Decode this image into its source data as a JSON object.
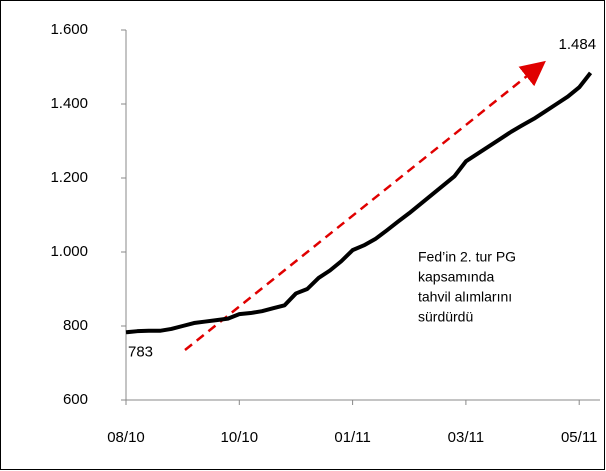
{
  "chart_data": {
    "type": "line",
    "categories": [
      "08/10",
      null,
      null,
      null,
      null,
      null,
      null,
      null,
      null,
      null,
      "10/10",
      null,
      null,
      null,
      null,
      null,
      null,
      null,
      null,
      null,
      "01/11",
      null,
      null,
      null,
      null,
      null,
      null,
      null,
      null,
      null,
      "03/11",
      null,
      null,
      null,
      null,
      null,
      null,
      null,
      null,
      null,
      "05/11",
      null
    ],
    "series": [
      {
        "name": null,
        "color": "#000000",
        "values": [
          783,
          786,
          787,
          787,
          792,
          800,
          808,
          812,
          816,
          820,
          832,
          835,
          840,
          848,
          856,
          888,
          900,
          930,
          950,
          975,
          1005,
          1018,
          1035,
          1058,
          1082,
          1105,
          1130,
          1155,
          1180,
          1205,
          1245,
          1265,
          1285,
          1305,
          1325,
          1343,
          1360,
          1380,
          1400,
          1420,
          1445,
          1484
        ]
      }
    ],
    "value_labels": [
      "783",
      null,
      null,
      null,
      null,
      null,
      null,
      null,
      null,
      null,
      null,
      null,
      null,
      null,
      null,
      null,
      null,
      null,
      null,
      null,
      null,
      null,
      null,
      null,
      null,
      null,
      null,
      null,
      null,
      null,
      null,
      null,
      null,
      null,
      null,
      null,
      null,
      null,
      null,
      null,
      null,
      "1.484"
    ],
    "ylim": [
      600,
      1600
    ],
    "yticks": [
      {
        "value": 600,
        "label": "600"
      },
      {
        "value": 800,
        "label": "800"
      },
      {
        "value": 1000,
        "label": "1.000"
      },
      {
        "value": 1200,
        "label": "1.200"
      },
      {
        "value": 1400,
        "label": "1.400"
      },
      {
        "value": 1600,
        "label": "1.600"
      }
    ],
    "grid": false,
    "annotation": [
      "Fed’in 2. tur PG",
      "kapsamında",
      "tahvil alımlarını",
      "sürdürdü"
    ]
  }
}
